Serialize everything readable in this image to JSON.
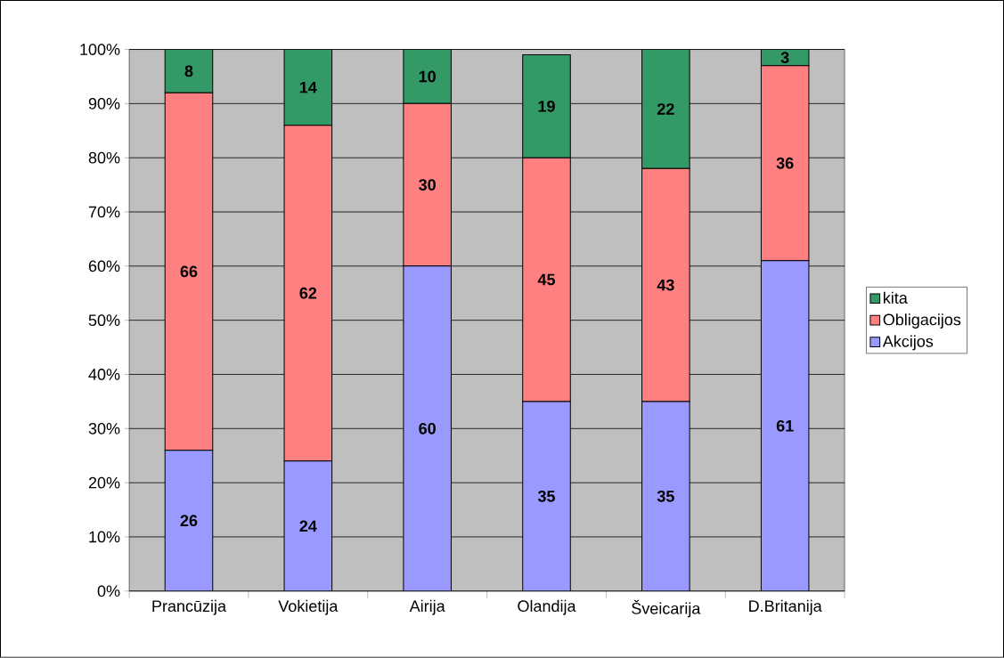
{
  "chart_data": {
    "type": "bar",
    "stacked": true,
    "categories": [
      "Prancūzija",
      "Vokietija",
      "Airija",
      "Olandija",
      "Šveicarija",
      "D.Britanija"
    ],
    "series": [
      {
        "name": "Akcijos",
        "color": "#9999ff",
        "values": [
          26,
          24,
          60,
          35,
          35,
          61
        ]
      },
      {
        "name": "Obligacijos",
        "color": "#ff8080",
        "values": [
          66,
          62,
          30,
          45,
          43,
          36
        ]
      },
      {
        "name": "kita",
        "color": "#339966",
        "values": [
          8,
          14,
          10,
          19,
          22,
          3
        ]
      }
    ],
    "ylim": [
      0,
      100
    ],
    "yticks": [
      {
        "value": 0,
        "label": "0%"
      },
      {
        "value": 10,
        "label": "10%"
      },
      {
        "value": 20,
        "label": "20%"
      },
      {
        "value": 30,
        "label": "30%"
      },
      {
        "value": 40,
        "label": "40%"
      },
      {
        "value": 50,
        "label": "50%"
      },
      {
        "value": 60,
        "label": "60%"
      },
      {
        "value": 70,
        "label": "70%"
      },
      {
        "value": 80,
        "label": "80%"
      },
      {
        "value": 90,
        "label": "90%"
      },
      {
        "value": 100,
        "label": "100%"
      }
    ],
    "grid": "y",
    "legend": "right",
    "data_labels": true
  }
}
